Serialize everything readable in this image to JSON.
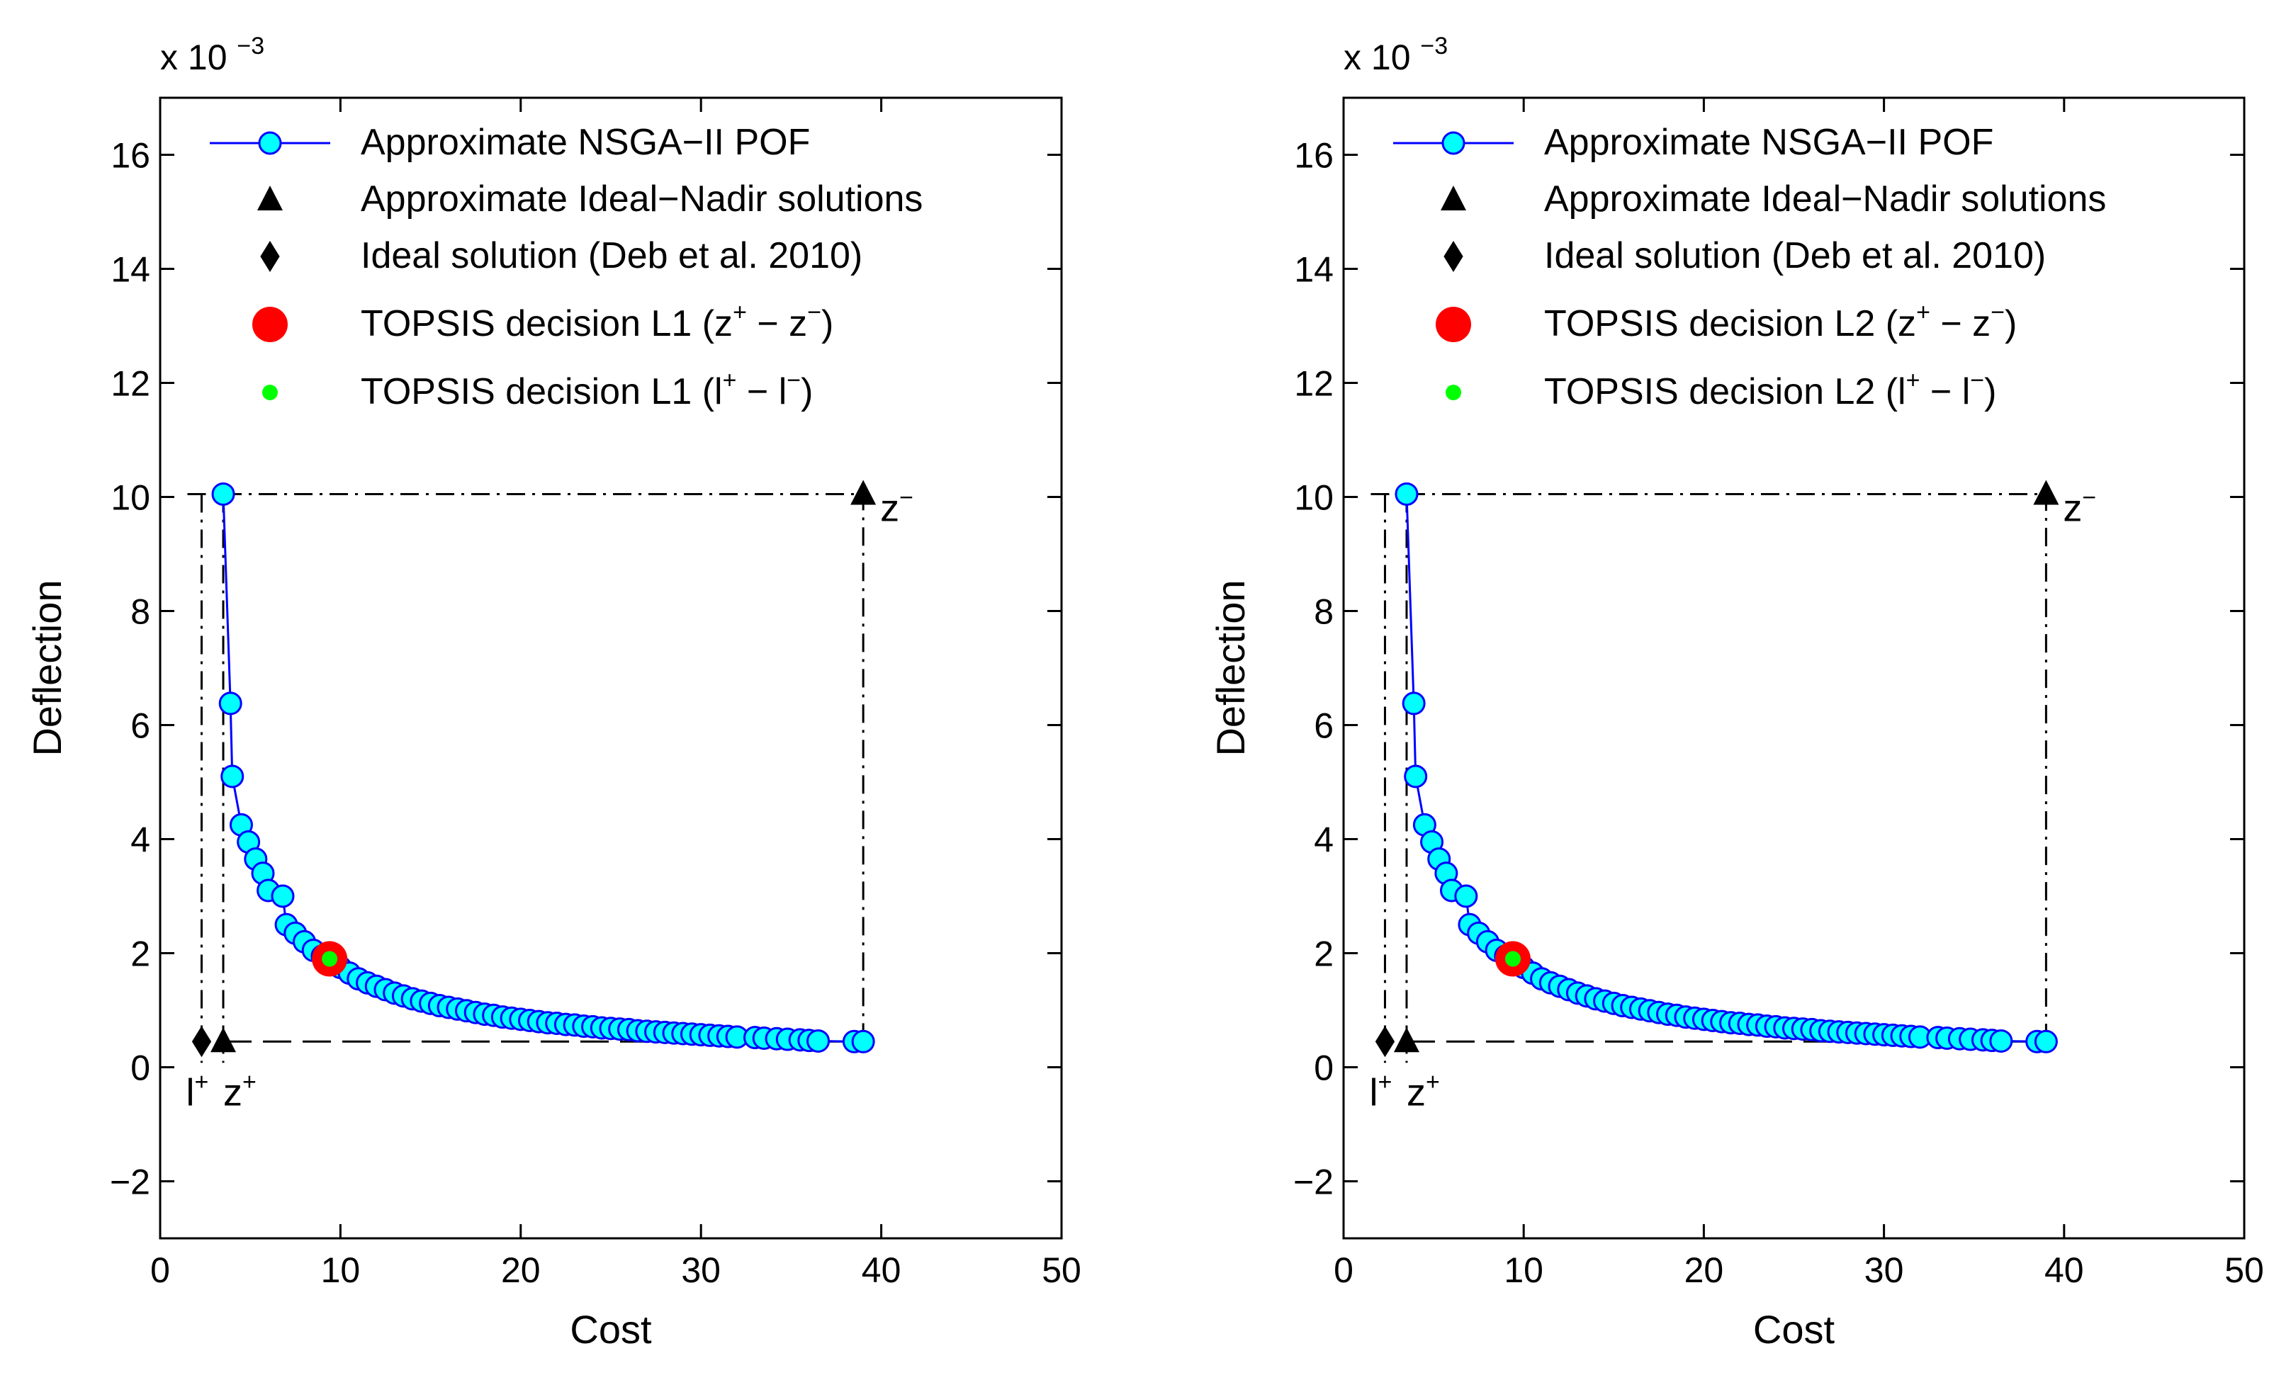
{
  "chart_data": [
    {
      "type": "line",
      "xlabel": "Cost",
      "ylabel": "Deflection",
      "y_multiplier": "x 10",
      "y_multiplier_exponent": "−3",
      "xlim": [
        0,
        50
      ],
      "ylim": [
        -3,
        17
      ],
      "xticks": [
        "0",
        "10",
        "20",
        "30",
        "40",
        "50"
      ],
      "yticks": [
        "−2",
        "0",
        "2",
        "4",
        "6",
        "8",
        "10",
        "12",
        "14",
        "16"
      ],
      "grid": false,
      "legend_position": "top-left",
      "colors": {
        "pof_line": "#0000ff",
        "pof_marker": "#00ffff",
        "topsis_z": "#ff0000",
        "topsis_l": "#00ff00",
        "ideal_nadir": "#000000"
      },
      "legend": [
        {
          "label": "Approximate NSGA−II POF"
        },
        {
          "label": "Approximate Ideal−Nadir solutions"
        },
        {
          "label": "Ideal solution (Deb et al. 2010)"
        },
        {
          "label": "TOPSIS decision L1 (z",
          "sup1": "+",
          "mid": " − z",
          "sup2": "−",
          "end": ")"
        },
        {
          "label": "TOPSIS decision L1 (l",
          "sup1": "+",
          "mid": " − l",
          "sup2": "−",
          "end": ")"
        }
      ],
      "series": [
        {
          "name": "Approximate NSGA−II POF",
          "points": [
            [
              3.5,
              10.05
            ],
            [
              3.9,
              6.38
            ],
            [
              4.0,
              5.1
            ],
            [
              4.5,
              4.25
            ],
            [
              4.9,
              3.95
            ],
            [
              5.3,
              3.65
            ],
            [
              5.7,
              3.4
            ],
            [
              6.0,
              3.1
            ],
            [
              6.8,
              3.0
            ],
            [
              7.0,
              2.5
            ],
            [
              7.5,
              2.35
            ],
            [
              8.0,
              2.2
            ],
            [
              8.5,
              2.05
            ],
            [
              9.0,
              1.95
            ],
            [
              9.5,
              1.85
            ],
            [
              10.0,
              1.75
            ],
            [
              10.5,
              1.65
            ],
            [
              11.0,
              1.55
            ],
            [
              11.5,
              1.48
            ],
            [
              12.0,
              1.42
            ],
            [
              12.5,
              1.36
            ],
            [
              13.0,
              1.3
            ],
            [
              13.5,
              1.25
            ],
            [
              14.0,
              1.2
            ],
            [
              14.5,
              1.16
            ],
            [
              15.0,
              1.12
            ],
            [
              15.5,
              1.08
            ],
            [
              16.0,
              1.05
            ],
            [
              16.5,
              1.02
            ],
            [
              17.0,
              0.99
            ],
            [
              17.5,
              0.96
            ],
            [
              18.0,
              0.93
            ],
            [
              18.5,
              0.91
            ],
            [
              19.0,
              0.88
            ],
            [
              19.5,
              0.86
            ],
            [
              20.0,
              0.84
            ],
            [
              20.5,
              0.82
            ],
            [
              21.0,
              0.8
            ],
            [
              21.5,
              0.78
            ],
            [
              22.0,
              0.77
            ],
            [
              22.5,
              0.75
            ],
            [
              23.0,
              0.74
            ],
            [
              23.5,
              0.72
            ],
            [
              24.0,
              0.71
            ],
            [
              24.5,
              0.69
            ],
            [
              25.0,
              0.68
            ],
            [
              25.5,
              0.67
            ],
            [
              26.0,
              0.66
            ],
            [
              26.5,
              0.64
            ],
            [
              27.0,
              0.63
            ],
            [
              27.5,
              0.62
            ],
            [
              28.0,
              0.61
            ],
            [
              28.5,
              0.6
            ],
            [
              29.0,
              0.59
            ],
            [
              29.5,
              0.58
            ],
            [
              30.0,
              0.57
            ],
            [
              30.5,
              0.56
            ],
            [
              31.0,
              0.55
            ],
            [
              31.5,
              0.54
            ],
            [
              32.0,
              0.53
            ],
            [
              33.0,
              0.52
            ],
            [
              33.5,
              0.51
            ],
            [
              34.2,
              0.5
            ],
            [
              34.8,
              0.49
            ],
            [
              35.5,
              0.48
            ],
            [
              36.0,
              0.47
            ],
            [
              36.5,
              0.46
            ],
            [
              38.5,
              0.45
            ],
            [
              39.0,
              0.45
            ]
          ]
        },
        {
          "name": "Approximate Ideal−Nadir solutions",
          "points": [
            [
              3.5,
              0.45
            ],
            [
              39.0,
              10.05
            ]
          ]
        },
        {
          "name": "Ideal solution (Deb et al. 2010)",
          "points": [
            [
              2.3,
              0.45
            ]
          ]
        },
        {
          "name": "TOPSIS decision L1 (z+ − z−)",
          "points": [
            [
              9.4,
              1.9
            ]
          ]
        },
        {
          "name": "TOPSIS decision L1 (l+ − l−)",
          "points": [
            [
              9.4,
              1.9
            ]
          ]
        }
      ],
      "annotations": {
        "ideal": {
          "base": "l",
          "sup": "+"
        },
        "zplus": {
          "base": "z",
          "sup": "+"
        },
        "zminus": {
          "base": "z",
          "sup": "−"
        }
      }
    },
    {
      "type": "line",
      "xlabel": "Cost",
      "ylabel": "Deflection",
      "y_multiplier": "x 10",
      "y_multiplier_exponent": "−3",
      "xlim": [
        0,
        50
      ],
      "ylim": [
        -3,
        17
      ],
      "xticks": [
        "0",
        "10",
        "20",
        "30",
        "40",
        "50"
      ],
      "yticks": [
        "−2",
        "0",
        "2",
        "4",
        "6",
        "8",
        "10",
        "12",
        "14",
        "16"
      ],
      "grid": false,
      "legend_position": "top-left",
      "colors": {
        "pof_line": "#0000ff",
        "pof_marker": "#00ffff",
        "topsis_z": "#ff0000",
        "topsis_l": "#00ff00",
        "ideal_nadir": "#000000"
      },
      "legend": [
        {
          "label": "Approximate NSGA−II POF"
        },
        {
          "label": "Approximate Ideal−Nadir solutions"
        },
        {
          "label": "Ideal solution (Deb et al. 2010)"
        },
        {
          "label": "TOPSIS decision L2 (z",
          "sup1": "+",
          "mid": " − z",
          "sup2": "−",
          "end": ")"
        },
        {
          "label": "TOPSIS decision L2 (l",
          "sup1": "+",
          "mid": " − l",
          "sup2": "−",
          "end": ")"
        }
      ],
      "series": [
        {
          "name": "Approximate NSGA−II POF",
          "points": [
            [
              3.5,
              10.05
            ],
            [
              3.9,
              6.38
            ],
            [
              4.0,
              5.1
            ],
            [
              4.5,
              4.25
            ],
            [
              4.9,
              3.95
            ],
            [
              5.3,
              3.65
            ],
            [
              5.7,
              3.4
            ],
            [
              6.0,
              3.1
            ],
            [
              6.8,
              3.0
            ],
            [
              7.0,
              2.5
            ],
            [
              7.5,
              2.35
            ],
            [
              8.0,
              2.2
            ],
            [
              8.5,
              2.05
            ],
            [
              9.0,
              1.95
            ],
            [
              9.5,
              1.85
            ],
            [
              10.0,
              1.75
            ],
            [
              10.5,
              1.65
            ],
            [
              11.0,
              1.55
            ],
            [
              11.5,
              1.48
            ],
            [
              12.0,
              1.42
            ],
            [
              12.5,
              1.36
            ],
            [
              13.0,
              1.3
            ],
            [
              13.5,
              1.25
            ],
            [
              14.0,
              1.2
            ],
            [
              14.5,
              1.16
            ],
            [
              15.0,
              1.12
            ],
            [
              15.5,
              1.08
            ],
            [
              16.0,
              1.05
            ],
            [
              16.5,
              1.02
            ],
            [
              17.0,
              0.99
            ],
            [
              17.5,
              0.96
            ],
            [
              18.0,
              0.93
            ],
            [
              18.5,
              0.91
            ],
            [
              19.0,
              0.88
            ],
            [
              19.5,
              0.86
            ],
            [
              20.0,
              0.84
            ],
            [
              20.5,
              0.82
            ],
            [
              21.0,
              0.8
            ],
            [
              21.5,
              0.78
            ],
            [
              22.0,
              0.77
            ],
            [
              22.5,
              0.75
            ],
            [
              23.0,
              0.74
            ],
            [
              23.5,
              0.72
            ],
            [
              24.0,
              0.71
            ],
            [
              24.5,
              0.69
            ],
            [
              25.0,
              0.68
            ],
            [
              25.5,
              0.67
            ],
            [
              26.0,
              0.66
            ],
            [
              26.5,
              0.64
            ],
            [
              27.0,
              0.63
            ],
            [
              27.5,
              0.62
            ],
            [
              28.0,
              0.61
            ],
            [
              28.5,
              0.6
            ],
            [
              29.0,
              0.59
            ],
            [
              29.5,
              0.58
            ],
            [
              30.0,
              0.57
            ],
            [
              30.5,
              0.56
            ],
            [
              31.0,
              0.55
            ],
            [
              31.5,
              0.54
            ],
            [
              32.0,
              0.53
            ],
            [
              33.0,
              0.52
            ],
            [
              33.5,
              0.51
            ],
            [
              34.2,
              0.5
            ],
            [
              34.8,
              0.49
            ],
            [
              35.5,
              0.48
            ],
            [
              36.0,
              0.47
            ],
            [
              36.5,
              0.46
            ],
            [
              38.5,
              0.45
            ],
            [
              39.0,
              0.45
            ]
          ]
        },
        {
          "name": "Approximate Ideal−Nadir solutions",
          "points": [
            [
              3.5,
              0.45
            ],
            [
              39.0,
              10.05
            ]
          ]
        },
        {
          "name": "Ideal solution (Deb et al. 2010)",
          "points": [
            [
              2.3,
              0.45
            ]
          ]
        },
        {
          "name": "TOPSIS decision L2 (z+ − z−)",
          "points": [
            [
              9.4,
              1.9
            ]
          ]
        },
        {
          "name": "TOPSIS decision L2 (l+ − l−)",
          "points": [
            [
              9.4,
              1.9
            ]
          ]
        }
      ],
      "annotations": {
        "ideal": {
          "base": "l",
          "sup": "+"
        },
        "zplus": {
          "base": "z",
          "sup": "+"
        },
        "zminus": {
          "base": "z",
          "sup": "−"
        }
      }
    }
  ]
}
